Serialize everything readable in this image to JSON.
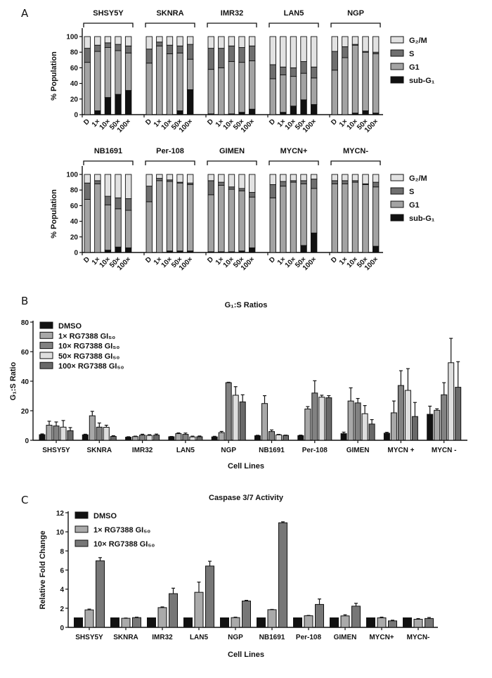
{
  "panels": {
    "a": "A",
    "b": "B",
    "c": "C"
  },
  "chart_data": [
    {
      "type": "bar",
      "stacked": true,
      "ylabel": "% Population",
      "ylim": [
        0,
        100
      ],
      "yticks": [
        "0",
        "20",
        "40",
        "60",
        "80",
        "100"
      ],
      "bar_labels": [
        "D",
        "1×",
        "10×",
        "50×",
        "100×"
      ],
      "phases": [
        "sub-G₁",
        "G1",
        "S",
        "G₂/M"
      ],
      "legend": [
        "G₂/M",
        "S",
        "G1",
        "sub-G₁"
      ],
      "colors": {
        "sub-G1": "#111111",
        "G1": "#a3a3a3",
        "S": "#6f6f6f",
        "G2/M": "#e2e2e2"
      },
      "groups": [
        {
          "name": "SHSY5Y",
          "bars": [
            [
              0,
              67,
              18,
              15
            ],
            [
              5,
              76,
              8,
              11
            ],
            [
              22,
              64,
              6,
              8
            ],
            [
              26,
              56,
              8,
              10
            ],
            [
              31,
              48,
              9,
              12
            ]
          ]
        },
        {
          "name": "SKNRA",
          "bars": [
            [
              0,
              66,
              18,
              16
            ],
            [
              0,
              88,
              5,
              7
            ],
            [
              0,
              78,
              11,
              11
            ],
            [
              5,
              74,
              9,
              12
            ],
            [
              32,
              39,
              19,
              10
            ]
          ]
        },
        {
          "name": "IMR32",
          "bars": [
            [
              1,
              57,
              27,
              15
            ],
            [
              0,
              60,
              25,
              15
            ],
            [
              1,
              67,
              20,
              12
            ],
            [
              3,
              64,
              19,
              14
            ],
            [
              7,
              62,
              19,
              12
            ]
          ]
        },
        {
          "name": "LAN5",
          "bars": [
            [
              0,
              46,
              18,
              36
            ],
            [
              3,
              48,
              10,
              39
            ],
            [
              11,
              38,
              11,
              40
            ],
            [
              19,
              34,
              15,
              32
            ],
            [
              13,
              34,
              14,
              39
            ]
          ]
        },
        {
          "name": "NGP",
          "bars": [
            [
              0,
              57,
              24,
              19
            ],
            [
              0,
              73,
              14,
              13
            ],
            [
              2,
              87,
              1,
              10
            ],
            [
              5,
              75,
              1,
              19
            ],
            [
              2,
              76,
              2,
              20
            ]
          ]
        },
        {
          "name": "NB1691",
          "bars": [
            [
              0,
              68,
              21,
              11
            ],
            [
              0,
              88,
              4,
              8
            ],
            [
              3,
              58,
              11,
              28
            ],
            [
              7,
              49,
              14,
              30
            ],
            [
              6,
              48,
              15,
              31
            ]
          ]
        },
        {
          "name": "Per-108",
          "bars": [
            [
              0,
              65,
              20,
              15
            ],
            [
              0,
              92,
              3,
              5
            ],
            [
              2,
              89,
              2,
              7
            ],
            [
              2,
              87,
              1,
              10
            ],
            [
              2,
              85,
              2,
              11
            ]
          ]
        },
        {
          "name": "GIMEN",
          "bars": [
            [
              1,
              73,
              18,
              8
            ],
            [
              1,
              85,
              4,
              10
            ],
            [
              1,
              80,
              3,
              16
            ],
            [
              2,
              77,
              3,
              18
            ],
            [
              6,
              65,
              6,
              23
            ]
          ]
        },
        {
          "name": "MYCN+",
          "bars": [
            [
              0,
              70,
              17,
              13
            ],
            [
              0,
              85,
              6,
              9
            ],
            [
              0,
              90,
              2,
              8
            ],
            [
              9,
              79,
              4,
              8
            ],
            [
              25,
              57,
              12,
              6
            ]
          ]
        },
        {
          "name": "MYCN-",
          "bars": [
            [
              0,
              88,
              4,
              8
            ],
            [
              0,
              88,
              4,
              8
            ],
            [
              0,
              90,
              2,
              8
            ],
            [
              0,
              87,
              1,
              12
            ],
            [
              8,
              76,
              6,
              10
            ]
          ]
        }
      ]
    },
    {
      "type": "bar",
      "title": "G₁:S Ratios",
      "xlabel": "Cell Lines",
      "ylabel": "G₁:S Ratio",
      "ylim": [
        0,
        80
      ],
      "yticks": [
        "0",
        "20",
        "40",
        "60",
        "80"
      ],
      "legend_position": "top-left",
      "categories": [
        "SHSY5Y",
        "SKNRA",
        "IMR32",
        "LAN5",
        "NGP",
        "NB1691",
        "Per-108",
        "GIMEN",
        "MYCN +",
        "MYCN -"
      ],
      "series": [
        {
          "name": "DMSO",
          "color": "#111111",
          "values": [
            3.8,
            3.7,
            2.1,
            2.4,
            2.3,
            3.1,
            3.2,
            4.5,
            4.8,
            17.6
          ],
          "errors": [
            0.5,
            0.4,
            0.3,
            0.2,
            0.4,
            0.3,
            0.3,
            1.0,
            0.6,
            5.5
          ]
        },
        {
          "name": "1× RG7388 GI₅₀",
          "color": "#a8a8a8",
          "values": [
            10.2,
            16.6,
            2.5,
            4.5,
            5.2,
            24.9,
            21.2,
            26.6,
            18.6,
            20.3
          ],
          "errors": [
            2.7,
            3.0,
            0.3,
            0.5,
            0.8,
            5.3,
            1.6,
            8.9,
            8.0,
            1.0
          ]
        },
        {
          "name": "10× RG7388 GI₅₀",
          "color": "#828282",
          "values": [
            9.7,
            8.9,
            3.5,
            4.0,
            39.0,
            5.9,
            32.0,
            25.3,
            37.1,
            30.8
          ],
          "errors": [
            2.7,
            2.8,
            0.6,
            0.9,
            0.3,
            1.1,
            8.3,
            3.0,
            10.0,
            8.2
          ]
        },
        {
          "name": "50× RG7388 GI₅₀",
          "color": "#dedede",
          "values": [
            8.9,
            8.8,
            3.3,
            2.3,
            30.5,
            3.7,
            29.2,
            18.0,
            33.8,
            52.5
          ],
          "errors": [
            4.5,
            1.4,
            0.5,
            0.5,
            5.8,
            0.3,
            1.3,
            5.5,
            14.7,
            16.5
          ]
        },
        {
          "name": "100× RG7388 GI₅₀",
          "color": "#696969",
          "values": [
            6.5,
            2.6,
            3.5,
            2.4,
            26.0,
            3.3,
            28.8,
            11.0,
            16.1,
            35.9
          ],
          "errors": [
            2.1,
            0.5,
            0.7,
            0.5,
            4.8,
            0.2,
            1.4,
            3.0,
            9.5,
            17.3
          ]
        }
      ]
    },
    {
      "type": "bar",
      "title": "Caspase 3/7 Activity",
      "xlabel": "Cell Lines",
      "ylabel": "Relative Fold Change",
      "ylim": [
        0,
        12
      ],
      "yticks": [
        "0",
        "2",
        "4",
        "6",
        "8",
        "10",
        "12"
      ],
      "legend_position": "top-left",
      "categories": [
        "SHSY5Y",
        "SKNRA",
        "IMR32",
        "LAN5",
        "NGP",
        "NB1691",
        "Per-108",
        "GIMEN",
        "MYCN+",
        "MYCN-"
      ],
      "series": [
        {
          "name": "DMSO",
          "color": "#111111",
          "values": [
            1,
            1,
            1,
            1,
            1,
            1,
            1,
            1,
            1,
            1
          ],
          "errors": [
            0,
            0,
            0,
            0,
            0,
            0,
            0,
            0,
            0,
            0
          ]
        },
        {
          "name": "1× RG7388 GI₅₀",
          "color": "#aaaaaa",
          "values": [
            1.83,
            0.95,
            2.07,
            3.67,
            1.02,
            1.85,
            1.22,
            1.2,
            1.0,
            0.85
          ],
          "errors": [
            0.08,
            0.03,
            0.07,
            1.07,
            0.05,
            0.03,
            0.03,
            0.12,
            0.07,
            0.07
          ]
        },
        {
          "name": "10× RG7388 GI₅₀",
          "color": "#777777",
          "values": [
            6.97,
            1.02,
            3.53,
            6.42,
            2.76,
            10.95,
            2.4,
            2.22,
            0.68,
            0.93
          ],
          "errors": [
            0.33,
            0.05,
            0.57,
            0.5,
            0.07,
            0.1,
            0.57,
            0.3,
            0.07,
            0.1
          ]
        }
      ]
    }
  ]
}
